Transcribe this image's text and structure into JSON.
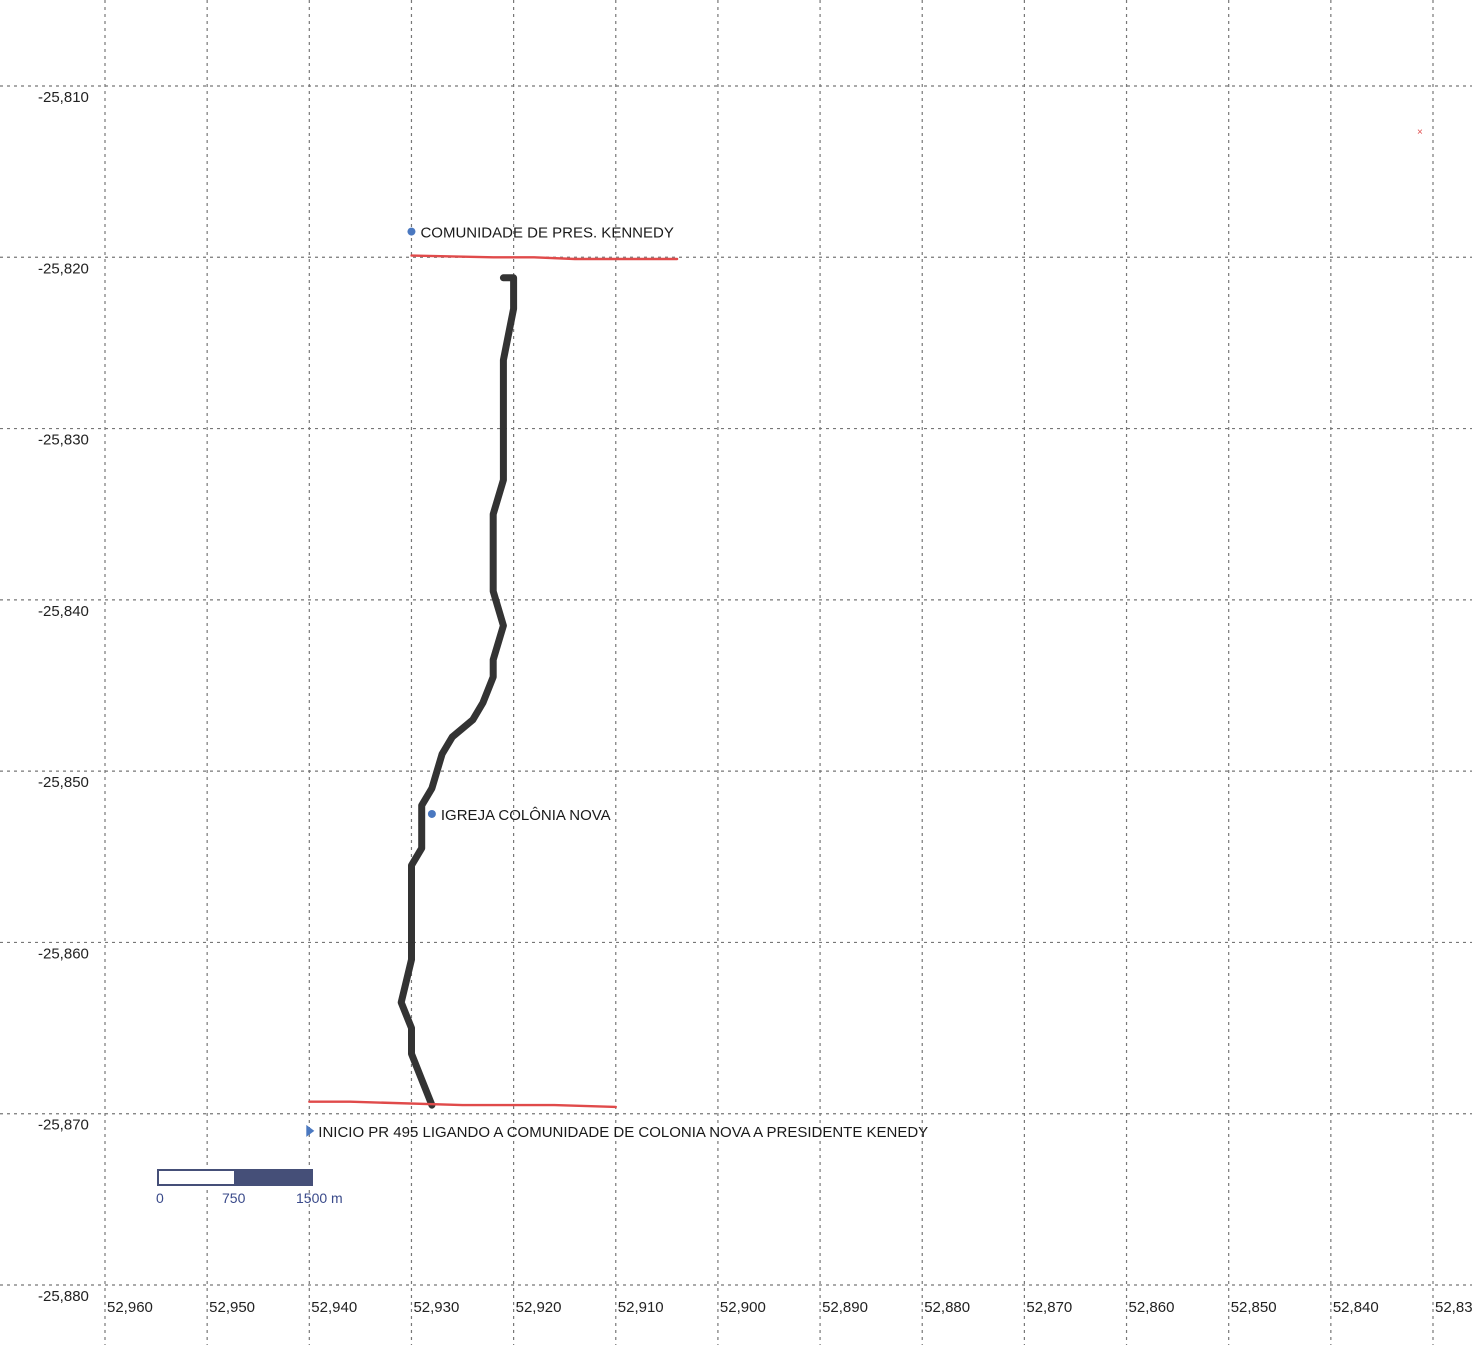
{
  "map": {
    "x_ticks": [
      "52,960",
      "52,950",
      "52,940",
      "52,930",
      "52,920",
      "52,910",
      "52,900",
      "52,890",
      "52,880",
      "52,870",
      "52,860",
      "52,850",
      "52,840",
      "52,830"
    ],
    "y_ticks": [
      "-25,810",
      "-25,820",
      "-25,830",
      "-25,840",
      "-25,850",
      "-25,860",
      "-25,870",
      "-25,880"
    ],
    "places": [
      {
        "label": "COMUNIDADE DE PRES. KENNEDY",
        "lon": 52.93,
        "lat": -25.8185,
        "marker": "circle"
      },
      {
        "label": "IGREJA COLÔNIA NOVA",
        "lon": 52.928,
        "lat": -25.8525,
        "marker": "circle"
      },
      {
        "label": "INICIO PR 495 LIGANDO A COMUNIDADE DE COLONIA NOVA A PRESIDENTE KENEDY",
        "lon": 52.94,
        "lat": -25.871,
        "marker": "triangle"
      }
    ],
    "scale_bar": {
      "labels": [
        "0",
        "750",
        "1500 m"
      ]
    },
    "colors": {
      "road": "#333333",
      "red_lines": "#e04a4a",
      "marker": "#4a78c0",
      "grid": "#777777",
      "scale_fill": "#454f78"
    }
  },
  "chart_data": {
    "type": "line",
    "title": "",
    "xlabel": "",
    "ylabel": "",
    "xlim": [
      52.96,
      52.83
    ],
    "ylim": [
      -25.88,
      -25.81
    ],
    "grid": true,
    "series": [
      {
        "role": "road",
        "x": [
          52.921,
          52.92,
          52.92,
          52.921,
          52.921,
          52.921,
          52.921,
          52.922,
          52.922,
          52.922,
          52.922,
          52.921,
          52.922,
          52.922,
          52.923,
          52.924,
          52.926,
          52.927,
          52.928,
          52.929,
          52.929,
          52.929,
          52.93,
          52.93,
          52.93,
          52.93,
          52.931,
          52.93,
          52.93,
          52.929,
          52.928
        ],
        "y": [
          -25.8212,
          -25.8212,
          -25.823,
          -25.826,
          -25.829,
          -25.831,
          -25.833,
          -25.835,
          -25.8365,
          -25.838,
          -25.8395,
          -25.8415,
          -25.8435,
          -25.8445,
          -25.846,
          -25.847,
          -25.848,
          -25.849,
          -25.851,
          -25.852,
          -25.853,
          -25.8545,
          -25.8555,
          -25.857,
          -25.859,
          -25.861,
          -25.8635,
          -25.865,
          -25.8665,
          -25.868,
          -25.8695
        ]
      },
      {
        "role": "red-line-north",
        "x": [
          52.93,
          52.922,
          52.918,
          52.914,
          52.904
        ],
        "y": [
          -25.8199,
          -25.82,
          -25.82,
          -25.8201,
          -25.8201
        ]
      },
      {
        "role": "red-line-south",
        "x": [
          52.94,
          52.936,
          52.925,
          52.916,
          52.91
        ],
        "y": [
          -25.8693,
          -25.8693,
          -25.8695,
          -25.8695,
          -25.8696
        ]
      }
    ]
  }
}
